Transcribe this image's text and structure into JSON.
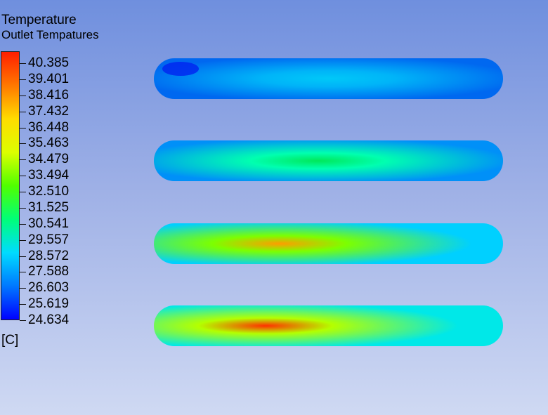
{
  "legend": {
    "title": "Temperature",
    "subtitle": "Outlet Tempatures",
    "unit": "[C]",
    "ticks": [
      "40.385",
      "39.401",
      "38.416",
      "37.432",
      "36.448",
      "35.463",
      "34.479",
      "33.494",
      "32.510",
      "31.525",
      "30.541",
      "29.557",
      "28.572",
      "27.588",
      "26.603",
      "25.619",
      "24.634"
    ],
    "min": 24.634,
    "max": 40.385
  },
  "colormap": [
    "#0000ff",
    "#0078ff",
    "#00dcff",
    "#00ff78",
    "#50ff00",
    "#dcff00",
    "#ffdc00",
    "#ff7800",
    "#ff1e00"
  ],
  "outlets": [
    {
      "name": "outlet-1",
      "edge_color": "#0068f0",
      "core_color": "#00b4f8",
      "hot_color": "#00c8f8",
      "cold_spot_color": "#0028f0"
    },
    {
      "name": "outlet-2",
      "edge_color": "#0090f8",
      "core_color": "#00ffb0",
      "hot_color": "#00e85a",
      "cold_spot_color": null
    },
    {
      "name": "outlet-3",
      "edge_color": "#00d0ff",
      "core_color": "#7cff00",
      "hot_color": "#ff9c00",
      "cold_spot_color": null
    },
    {
      "name": "outlet-4",
      "edge_color": "#00e8e8",
      "core_color": "#b4ff00",
      "hot_color": "#ff3000",
      "cold_spot_color": null
    }
  ]
}
